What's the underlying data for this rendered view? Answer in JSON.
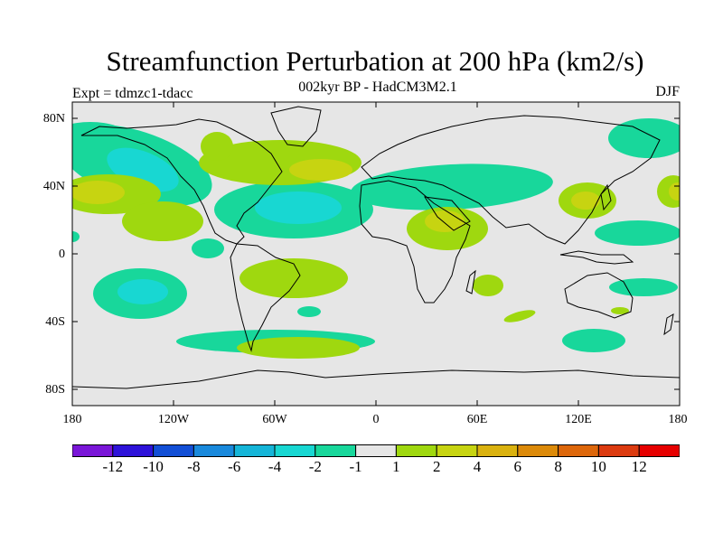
{
  "title": "Streamfunction Perturbation at 200 hPa (km2/s)",
  "subtitle": "002kyr BP - HadCM3M2.1",
  "experiment": "Expt = tdmzc1-tdacc",
  "season": "DJF",
  "lat_ticks": [
    "80N",
    "40N",
    "0",
    "40S",
    "80S"
  ],
  "lon_ticks": [
    "180",
    "120W",
    "60W",
    "0",
    "60E",
    "120E",
    "180"
  ],
  "colorbar": {
    "colors": [
      "#7a16d8",
      "#2e13d9",
      "#134fd6",
      "#1989dc",
      "#15b5d8",
      "#18d7d2",
      "#18d79b",
      "#e6e6e6",
      "#9fd80f",
      "#c7d411",
      "#dab20f",
      "#dc8a09",
      "#dd670b",
      "#dc3b10",
      "#e60000"
    ],
    "labels": [
      "-12",
      "-10",
      "-8",
      "-6",
      "-4",
      "-2",
      "-1",
      "1",
      "2",
      "4",
      "6",
      "8",
      "10",
      "12"
    ]
  },
  "colors": {
    "background": "#e6e6e6",
    "neg_low": "#18d79b",
    "neg_mid": "#18d7d2",
    "pos_low": "#9fd80f",
    "pos_mid": "#c7d411",
    "coast": "#000000"
  }
}
